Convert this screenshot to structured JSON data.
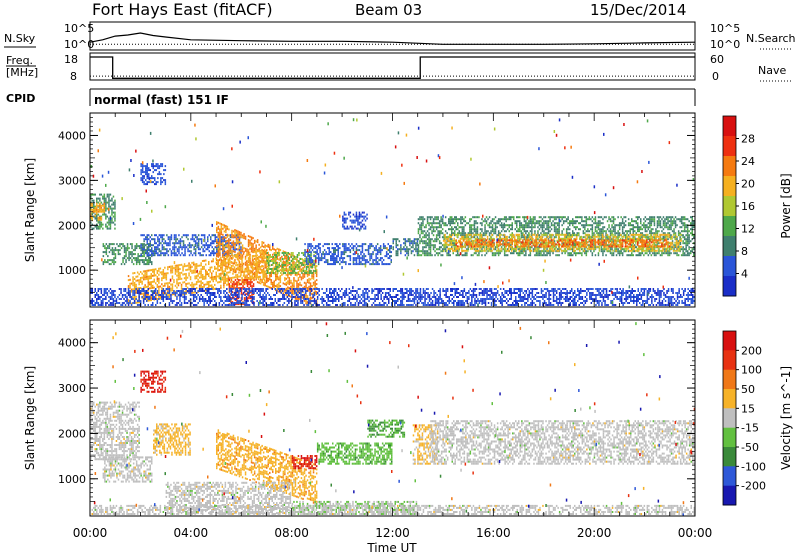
{
  "header": {
    "station": "Fort Hays East (fitACF)",
    "beam": "Beam 03",
    "date": "15/Dec/2014"
  },
  "strip_labels": {
    "nsky": "N.Sky",
    "nsearch": "N.Search",
    "freq_line1": "Freq.",
    "freq_line2": "[MHz]",
    "nave": "Nave",
    "cpid": "CPID",
    "cpid_value": "normal (fast) 151 IF",
    "noise_tick_hi": "10^5",
    "noise_tick_lo": "10^0",
    "freq_tick_hi": "18",
    "freq_tick_lo": "8",
    "nave_tick_hi": "60",
    "nave_tick_lo": "0"
  },
  "colors": {
    "power": [
      "#1a2ec8",
      "#2a55d8",
      "#3f7f6e",
      "#4ea84a",
      "#b0c832",
      "#f5b020",
      "#f57a10",
      "#ee3010",
      "#d81010"
    ],
    "velocity": [
      "#1818b0",
      "#2e58d8",
      "#3a8a3a",
      "#62c040",
      "#bfbfbf",
      "#f6b228",
      "#f07818",
      "#e83212",
      "#d81010"
    ]
  },
  "chart_data": [
    {
      "type": "line",
      "title": "",
      "x_unit": "UT hours",
      "xlim": [
        0,
        24
      ],
      "series": [
        {
          "name": "N.Sky",
          "scale": "log",
          "ylim": [
            1,
            100000
          ],
          "x": [
            0,
            0.5,
            1.0,
            1.5,
            2.0,
            2.5,
            3.0,
            4.0,
            6.0,
            8.0,
            10.0,
            12.0,
            14.0,
            16.0,
            18.0,
            20.0,
            22.0,
            24.0
          ],
          "values": [
            20,
            60,
            300,
            500,
            1200,
            400,
            200,
            60,
            40,
            30,
            30,
            20,
            8,
            8,
            8,
            10,
            15,
            20
          ]
        },
        {
          "name": "N.Search",
          "scale": "log",
          "ylim": [
            1,
            100000
          ],
          "x": [
            0,
            6,
            12,
            18,
            24
          ],
          "values": [
            8,
            8,
            8,
            8,
            8
          ]
        }
      ]
    },
    {
      "type": "line",
      "xlim": [
        0,
        24
      ],
      "series": [
        {
          "name": "Freq.",
          "unit": "MHz",
          "ylim": [
            8,
            18
          ],
          "x": [
            0,
            0.9,
            0.9,
            13.1,
            13.1,
            24
          ],
          "values": [
            16.8,
            16.8,
            8.3,
            8.3,
            16.8,
            16.8
          ]
        },
        {
          "name": "Nave",
          "ylim": [
            0,
            60
          ],
          "x": [
            0,
            6,
            12,
            18,
            24
          ],
          "values": [
            7,
            7,
            7,
            7,
            7
          ]
        }
      ]
    },
    {
      "type": "heatmap",
      "quantity": "Power",
      "colorbar_label": "Power [dB]",
      "colorbar_ticks": [
        "4",
        "8",
        "12",
        "16",
        "20",
        "24",
        "28"
      ],
      "crange": [
        0,
        32
      ],
      "ylabel": "Slant Range [km]",
      "y_ticks": [
        "1000",
        "2000",
        "3000",
        "4000"
      ],
      "ylim": [
        180,
        4500
      ],
      "xlim": [
        0,
        24
      ],
      "regions": [
        {
          "t0": 0.0,
          "t1": 1.0,
          "r0": 1900,
          "r1": 2700,
          "value": 10
        },
        {
          "t0": 0.0,
          "t1": 0.6,
          "r0": 2100,
          "r1": 2500,
          "value": 20
        },
        {
          "t0": 0.5,
          "t1": 2.5,
          "r0": 1100,
          "r1": 1600,
          "value": 10
        },
        {
          "t0": 2.0,
          "t1": 3.0,
          "r0": 2900,
          "r1": 3400,
          "value": 5
        },
        {
          "t0": 2.0,
          "t1": 6.0,
          "r0": 1300,
          "r1": 1800,
          "value": 6
        },
        {
          "t0": 5.0,
          "t1": 9.0,
          "r0": 1100,
          "r1": 2100,
          "value": 22,
          "slope": -250
        },
        {
          "t0": 1.5,
          "t1": 7.0,
          "r0": 200,
          "r1": 900,
          "value": 20,
          "slope": 100
        },
        {
          "t0": 5.5,
          "t1": 6.5,
          "r0": 200,
          "r1": 800,
          "value": 26
        },
        {
          "t0": 7.0,
          "t1": 9.0,
          "r0": 900,
          "r1": 1400,
          "value": 14
        },
        {
          "t0": 8.5,
          "t1": 12.0,
          "r0": 1100,
          "r1": 1600,
          "value": 6
        },
        {
          "t0": 10.0,
          "t1": 11.0,
          "r0": 1900,
          "r1": 2300,
          "value": 4
        },
        {
          "t0": 12.0,
          "t1": 13.0,
          "r0": 1300,
          "r1": 1700,
          "value": 8
        },
        {
          "t0": 13.0,
          "t1": 24.0,
          "r0": 1300,
          "r1": 2200,
          "value": 10
        },
        {
          "t0": 14.0,
          "t1": 23.5,
          "r0": 1400,
          "r1": 1800,
          "value": 18
        },
        {
          "t0": 14.5,
          "t1": 23.0,
          "r0": 1500,
          "r1": 1700,
          "value": 24
        },
        {
          "t0": 0.0,
          "t1": 24.0,
          "r0": 180,
          "r1": 600,
          "value": 4
        }
      ]
    },
    {
      "type": "heatmap",
      "quantity": "Velocity",
      "colorbar_label": "Velocity [m s^-1]",
      "colorbar_ticks": [
        "200",
        "100",
        "50",
        "15",
        "-15",
        "-50",
        "-100",
        "-200"
      ],
      "crange": [
        -250,
        250
      ],
      "ylabel": "Slant Range [km]",
      "y_ticks": [
        "1000",
        "2000",
        "3000",
        "4000"
      ],
      "ylim": [
        180,
        4500
      ],
      "xlabel": "Time UT",
      "x_ticks": [
        "00:00",
        "04:00",
        "08:00",
        "12:00",
        "16:00",
        "20:00",
        "00:00"
      ],
      "xlim": [
        0,
        24
      ],
      "regions": [
        {
          "t0": 0.0,
          "t1": 2.0,
          "r0": 1400,
          "r1": 2700,
          "value": 0
        },
        {
          "t0": 0.5,
          "t1": 2.5,
          "r0": 900,
          "r1": 1500,
          "value": 0
        },
        {
          "t0": 2.0,
          "t1": 3.0,
          "r0": 2900,
          "r1": 3400,
          "value": 200
        },
        {
          "t0": 2.5,
          "t1": 4.0,
          "r0": 1500,
          "r1": 2200,
          "value": 50
        },
        {
          "t0": 5.0,
          "t1": 9.0,
          "r0": 1200,
          "r1": 2100,
          "value": 60,
          "slope": -200
        },
        {
          "t0": 8.0,
          "t1": 9.0,
          "r0": 1200,
          "r1": 1500,
          "value": 200
        },
        {
          "t0": 9.0,
          "t1": 12.0,
          "r0": 1300,
          "r1": 1800,
          "value": -60
        },
        {
          "t0": 11.0,
          "t1": 12.5,
          "r0": 1900,
          "r1": 2300,
          "value": -80
        },
        {
          "t0": 12.8,
          "t1": 13.8,
          "r0": 1300,
          "r1": 2200,
          "value": 40
        },
        {
          "t0": 13.5,
          "t1": 24.0,
          "r0": 1300,
          "r1": 2300,
          "value": 0
        },
        {
          "t0": 3.0,
          "t1": 8.0,
          "r0": 200,
          "r1": 900,
          "value": 0
        },
        {
          "t0": 8.0,
          "t1": 13.0,
          "r0": 180,
          "r1": 500,
          "value": -30
        },
        {
          "t0": 0.0,
          "t1": 24.0,
          "r0": 180,
          "r1": 400,
          "value": 0
        }
      ]
    }
  ]
}
